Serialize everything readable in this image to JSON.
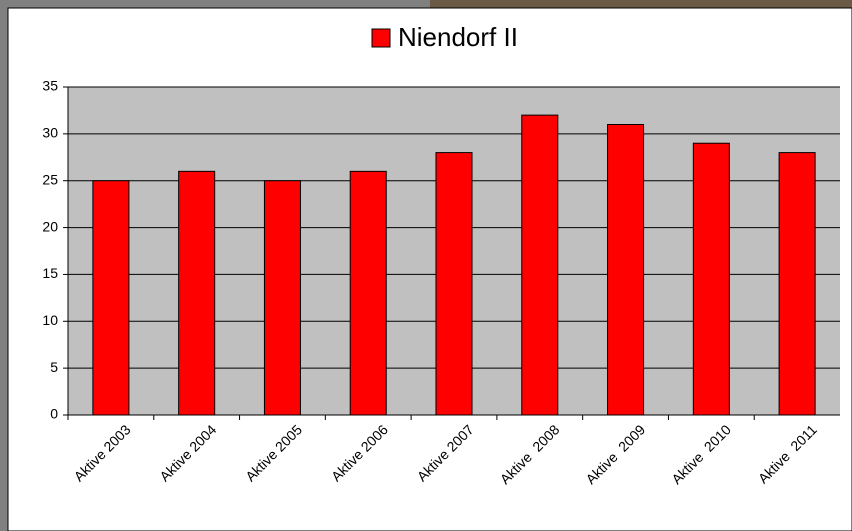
{
  "chart_data": {
    "type": "bar",
    "categories": [
      "Aktive 2003",
      "Aktive 2004",
      "Aktive 2005",
      "Aktive 2006",
      "Aktive 2007",
      "Aktive  2008",
      "Aktive  2009",
      "Aktive  2010",
      "Aktive  2011"
    ],
    "series": [
      {
        "name": "Niendorf II",
        "color": "#ff0000",
        "values": [
          25,
          26,
          25,
          26,
          28,
          32,
          31,
          29,
          28
        ]
      }
    ],
    "ylim": [
      0,
      35
    ],
    "yticks": [
      0,
      5,
      10,
      15,
      20,
      25,
      30,
      35
    ],
    "grid": true,
    "legend": "top"
  }
}
